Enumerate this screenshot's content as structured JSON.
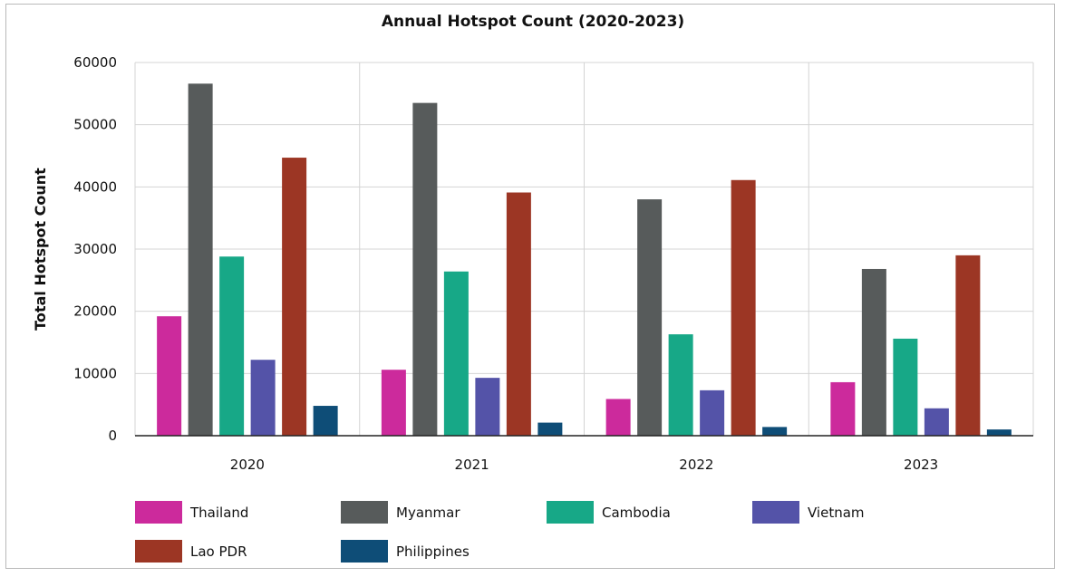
{
  "chart_data": {
    "type": "bar",
    "title": "Annual Hotspot Count (2020-2023)",
    "xlabel": "",
    "ylabel": "Total Hotspot Count",
    "categories": [
      "2020",
      "2021",
      "2022",
      "2023"
    ],
    "ylim": [
      0,
      60000
    ],
    "yticks": [
      "0",
      "10000",
      "20000",
      "30000",
      "40000",
      "50000",
      "60000"
    ],
    "grid": true,
    "legend_position": "bottom",
    "series": [
      {
        "name": "Thailand",
        "color": "#cc2a9c",
        "values": [
          19200,
          10600,
          5900,
          8600
        ]
      },
      {
        "name": "Myanmar",
        "color": "#575b5b",
        "values": [
          56600,
          53500,
          38000,
          26800
        ]
      },
      {
        "name": "Cambodia",
        "color": "#17a887",
        "values": [
          28800,
          26400,
          16300,
          15600
        ]
      },
      {
        "name": "Vietnam",
        "color": "#5453a8",
        "values": [
          12200,
          9300,
          7300,
          4400
        ]
      },
      {
        "name": "Lao PDR",
        "color": "#9c3624",
        "values": [
          44700,
          39100,
          41100,
          29000
        ]
      },
      {
        "name": "Philippines",
        "color": "#0e4d77",
        "values": [
          4800,
          2100,
          1400,
          1000
        ]
      }
    ]
  }
}
